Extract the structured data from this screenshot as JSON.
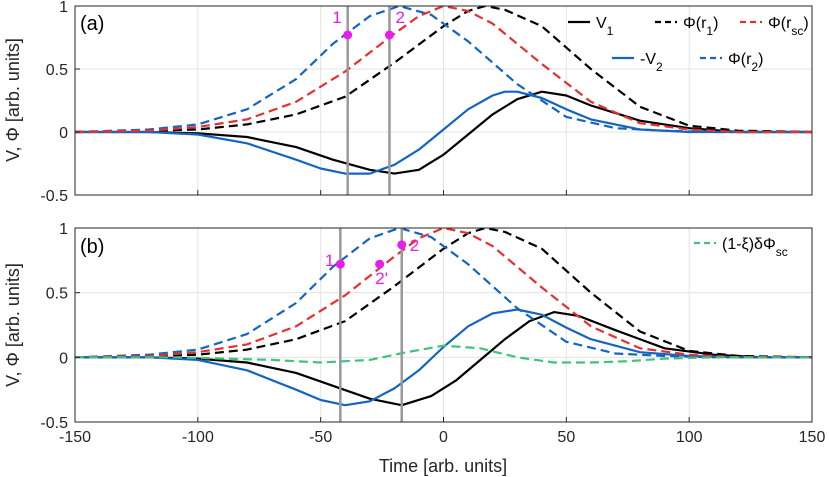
{
  "chart_data": [
    {
      "type": "line",
      "panel_label": "(a)",
      "xlim": [
        -150,
        150
      ],
      "ylim": [
        -0.5,
        1
      ],
      "xticks": [
        -150,
        -100,
        -50,
        0,
        50,
        100,
        150
      ],
      "yticks": [
        -0.5,
        0,
        0.5,
        1
      ],
      "ytick_labels": [
        "-0.5",
        "0",
        "0.5",
        "1"
      ],
      "ylabel": "V, Φ [arb. units]",
      "grid": true,
      "series": [
        {
          "name": "V1",
          "color": "#000000",
          "dash": false,
          "x": [
            -150,
            -120,
            -100,
            -80,
            -60,
            -45,
            -30,
            -20,
            -10,
            0,
            10,
            20,
            30,
            40,
            50,
            60,
            80,
            100,
            120,
            150
          ],
          "y": [
            0,
            0,
            -0.01,
            -0.04,
            -0.12,
            -0.22,
            -0.3,
            -0.33,
            -0.3,
            -0.18,
            -0.02,
            0.14,
            0.26,
            0.32,
            0.29,
            0.21,
            0.09,
            0.03,
            0.0,
            0
          ]
        },
        {
          "name": "Φ(r1)",
          "color": "#000000",
          "dash": true,
          "x": [
            -150,
            -120,
            -100,
            -80,
            -60,
            -40,
            -20,
            0,
            10,
            17,
            25,
            40,
            60,
            80,
            100,
            120,
            150
          ],
          "y": [
            0,
            0.01,
            0.02,
            0.06,
            0.14,
            0.28,
            0.55,
            0.84,
            0.96,
            1.0,
            0.97,
            0.84,
            0.5,
            0.2,
            0.05,
            0.01,
            0
          ]
        },
        {
          "name": "-V2",
          "color": "#1565c0",
          "dash": false,
          "x": [
            -150,
            -120,
            -100,
            -80,
            -60,
            -50,
            -40,
            -30,
            -20,
            -10,
            0,
            10,
            20,
            25,
            30,
            40,
            50,
            60,
            80,
            100,
            120,
            150
          ],
          "y": [
            0,
            0,
            -0.02,
            -0.09,
            -0.22,
            -0.29,
            -0.33,
            -0.33,
            -0.26,
            -0.14,
            0.02,
            0.18,
            0.29,
            0.32,
            0.32,
            0.27,
            0.18,
            0.1,
            0.02,
            0.0,
            0,
            0
          ]
        },
        {
          "name": "Φ(r2)",
          "color": "#1565c0",
          "dash": true,
          "x": [
            -150,
            -120,
            -100,
            -80,
            -60,
            -45,
            -30,
            -18,
            -5,
            10,
            30,
            50,
            70,
            90,
            110,
            150
          ],
          "y": [
            0,
            0.02,
            0.06,
            0.18,
            0.42,
            0.7,
            0.92,
            1.0,
            0.93,
            0.72,
            0.38,
            0.12,
            0.03,
            0.01,
            0,
            0
          ]
        },
        {
          "name": "Φ(rsc)",
          "color": "#e53030",
          "dash": true,
          "x": [
            -150,
            -120,
            -100,
            -80,
            -60,
            -40,
            -20,
            -10,
            0,
            10,
            20,
            40,
            60,
            80,
            100,
            120,
            150
          ],
          "y": [
            0,
            0.01,
            0.04,
            0.1,
            0.24,
            0.48,
            0.78,
            0.92,
            1.0,
            0.96,
            0.86,
            0.54,
            0.24,
            0.07,
            0.02,
            0,
            0
          ]
        }
      ],
      "markers": [
        {
          "label": "1",
          "x": -39,
          "y": 0.77
        },
        {
          "label": "2",
          "x": -22,
          "y": 0.77
        }
      ],
      "vlines": [
        -39,
        -22
      ],
      "legend": [
        "V1",
        "Φ(r1)",
        "Φ(rsc)",
        "-V2",
        "Φ(r2)"
      ],
      "legend_position": "top-right"
    },
    {
      "type": "line",
      "panel_label": "(b)",
      "xlim": [
        -150,
        150
      ],
      "ylim": [
        -0.5,
        1
      ],
      "xticks": [
        -150,
        -100,
        -50,
        0,
        50,
        100,
        150
      ],
      "xtick_labels": [
        "-150",
        "-100",
        "-50",
        "0",
        "50",
        "100",
        "150"
      ],
      "yticks": [
        -0.5,
        0,
        0.5,
        1
      ],
      "ytick_labels": [
        "-0.5",
        "0",
        "0.5",
        "1"
      ],
      "xlabel": "Time [arb. units]",
      "ylabel": "V, Φ [arb. units]",
      "grid": true,
      "series": [
        {
          "name": "V1",
          "color": "#000000",
          "dash": false,
          "x": [
            -150,
            -120,
            -100,
            -80,
            -60,
            -45,
            -30,
            -17,
            -5,
            5,
            15,
            25,
            35,
            45,
            55,
            70,
            90,
            110,
            130,
            150
          ],
          "y": [
            0,
            0,
            -0.01,
            -0.04,
            -0.12,
            -0.22,
            -0.32,
            -0.37,
            -0.3,
            -0.18,
            -0.02,
            0.14,
            0.28,
            0.35,
            0.32,
            0.21,
            0.07,
            0.02,
            0,
            0
          ]
        },
        {
          "name": "Φ(r1)",
          "color": "#000000",
          "dash": true,
          "x": [
            -150,
            -120,
            -100,
            -80,
            -60,
            -40,
            -20,
            0,
            10,
            17,
            25,
            40,
            60,
            80,
            100,
            120,
            150
          ],
          "y": [
            0,
            0.01,
            0.02,
            0.06,
            0.14,
            0.28,
            0.55,
            0.84,
            0.96,
            1.0,
            0.97,
            0.84,
            0.5,
            0.2,
            0.05,
            0.01,
            0
          ]
        },
        {
          "name": "-V2",
          "color": "#1565c0",
          "dash": false,
          "x": [
            -150,
            -120,
            -100,
            -80,
            -60,
            -50,
            -40,
            -30,
            -20,
            -10,
            0,
            10,
            20,
            30,
            40,
            50,
            60,
            80,
            100,
            120,
            150
          ],
          "y": [
            0,
            0,
            -0.02,
            -0.1,
            -0.25,
            -0.33,
            -0.37,
            -0.34,
            -0.24,
            -0.1,
            0.08,
            0.24,
            0.34,
            0.37,
            0.33,
            0.23,
            0.14,
            0.04,
            0.01,
            0,
            0
          ]
        },
        {
          "name": "Φ(r2)",
          "color": "#1565c0",
          "dash": true,
          "x": [
            -150,
            -120,
            -100,
            -80,
            -60,
            -45,
            -30,
            -18,
            -5,
            10,
            30,
            50,
            70,
            90,
            110,
            150
          ],
          "y": [
            0,
            0.02,
            0.06,
            0.18,
            0.42,
            0.7,
            0.92,
            1.0,
            0.93,
            0.72,
            0.38,
            0.12,
            0.03,
            0.01,
            0,
            0
          ]
        },
        {
          "name": "Φ(rsc)",
          "color": "#e53030",
          "dash": true,
          "x": [
            -150,
            -120,
            -100,
            -80,
            -60,
            -40,
            -20,
            -10,
            0,
            10,
            20,
            40,
            60,
            80,
            100,
            120,
            150
          ],
          "y": [
            0,
            0.01,
            0.04,
            0.1,
            0.24,
            0.48,
            0.78,
            0.92,
            1.0,
            0.96,
            0.86,
            0.54,
            0.24,
            0.07,
            0.02,
            0,
            0
          ]
        },
        {
          "name": "(1-ξ)δΦsc",
          "color": "#3cc47c",
          "dash": true,
          "x": [
            -150,
            -110,
            -90,
            -70,
            -50,
            -30,
            -15,
            0,
            15,
            30,
            45,
            60,
            75,
            90,
            110,
            130,
            150
          ],
          "y": [
            0,
            0,
            -0.01,
            -0.02,
            -0.04,
            -0.02,
            0.04,
            0.09,
            0.07,
            0.0,
            -0.04,
            -0.04,
            -0.03,
            -0.01,
            0,
            0,
            0
          ]
        }
      ],
      "markers": [
        {
          "label": "1",
          "x": -42,
          "y": 0.72
        },
        {
          "label": "2'",
          "x": -26,
          "y": 0.72
        },
        {
          "label": "2",
          "x": -17,
          "y": 0.87
        }
      ],
      "vlines": [
        -42,
        -17
      ],
      "legend": [
        "(1-ξ)δΦsc"
      ],
      "legend_position": "top-right"
    }
  ],
  "styles": {
    "marker_color": "#e81ee8",
    "vline_color": "#999999",
    "grid_color": "#e3e3e3"
  }
}
